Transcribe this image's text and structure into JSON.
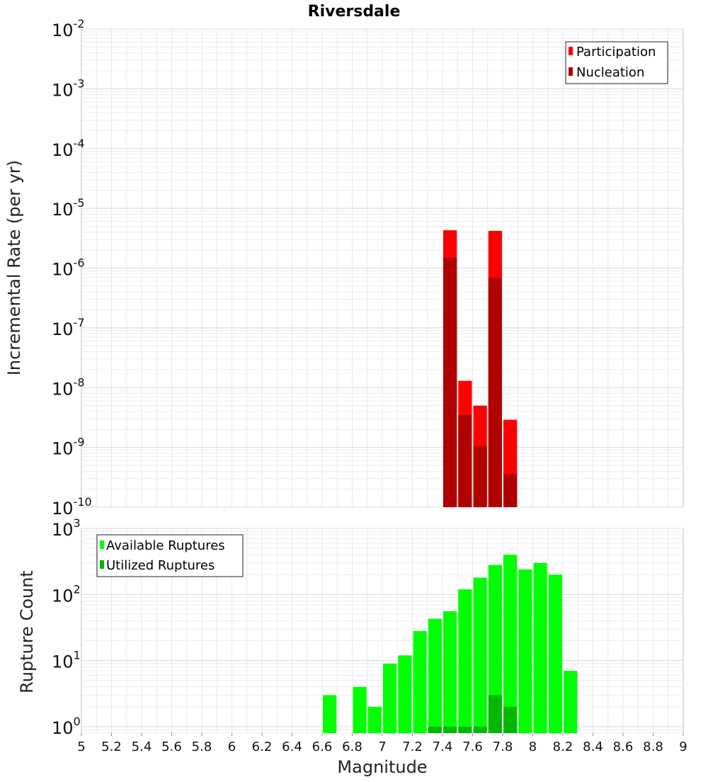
{
  "chart_data": [
    {
      "type": "bar",
      "title": "Riversdale",
      "xlabel": "",
      "ylabel": "Incremental Rate (per yr)",
      "yscale": "log",
      "ylim": [
        1e-10,
        0.01
      ],
      "xlim": [
        5,
        9
      ],
      "x_ticks": [],
      "y_ticks": [
        {
          "base": "10",
          "exp": "-2",
          "value": 0.01
        },
        {
          "base": "10",
          "exp": "-3",
          "value": 0.001
        },
        {
          "base": "10",
          "exp": "-4",
          "value": 0.0001
        },
        {
          "base": "10",
          "exp": "-5",
          "value": 1e-05
        },
        {
          "base": "10",
          "exp": "-6",
          "value": 1e-06
        },
        {
          "base": "10",
          "exp": "-7",
          "value": 1e-07
        },
        {
          "base": "10",
          "exp": "-8",
          "value": 1e-08
        },
        {
          "base": "10",
          "exp": "-9",
          "value": 1e-09
        },
        {
          "base": "10",
          "exp": "-10",
          "value": 1e-10
        }
      ],
      "grid": true,
      "legend_position": "top-right",
      "bar_width": 0.1,
      "series": [
        {
          "name": "Participation",
          "color": "#ff0000",
          "x": [
            7.45,
            7.55,
            7.65,
            7.75,
            7.85
          ],
          "values": [
            4.3e-06,
            1.3e-08,
            5e-09,
            4.2e-06,
            2.9e-09
          ]
        },
        {
          "name": "Nucleation",
          "color": "#b00000",
          "x": [
            7.45,
            7.55,
            7.65,
            7.75,
            7.85
          ],
          "values": [
            1.5e-06,
            3.5e-09,
            1.05e-09,
            6.8e-07,
            3.6e-10
          ]
        }
      ]
    },
    {
      "type": "bar",
      "title": "",
      "xlabel": "Magnitude",
      "ylabel": "Rupture Count",
      "yscale": "log",
      "ylim": [
        0.8,
        1000
      ],
      "xlim": [
        5,
        9
      ],
      "x_ticks": [
        "5",
        "5.2",
        "5.4",
        "5.6",
        "5.8",
        "6",
        "6.2",
        "6.4",
        "6.6",
        "6.8",
        "7",
        "7.2",
        "7.4",
        "7.6",
        "7.8",
        "8",
        "8.2",
        "8.4",
        "8.6",
        "8.8",
        "9"
      ],
      "y_ticks": [
        {
          "base": "10",
          "exp": "3",
          "value": 1000
        },
        {
          "base": "10",
          "exp": "2",
          "value": 100
        },
        {
          "base": "10",
          "exp": "1",
          "value": 10
        },
        {
          "base": "10",
          "exp": "0",
          "value": 1
        }
      ],
      "grid": true,
      "legend_position": "top-left",
      "bar_width": 0.1,
      "series": [
        {
          "name": "Available Ruptures",
          "color": "#00ff00",
          "x": [
            6.65,
            6.85,
            6.95,
            7.05,
            7.15,
            7.25,
            7.35,
            7.45,
            7.55,
            7.65,
            7.75,
            7.85,
            7.95,
            8.05,
            8.15,
            8.25
          ],
          "values": [
            3,
            4,
            2,
            9,
            12,
            28,
            43,
            56,
            120,
            180,
            280,
            400,
            240,
            300,
            200,
            7
          ]
        },
        {
          "name": "Utilized Ruptures",
          "color": "#00b800",
          "x": [
            7.35,
            7.45,
            7.55,
            7.65,
            7.75,
            7.85
          ],
          "values": [
            1,
            1,
            1,
            1,
            3,
            2
          ]
        }
      ]
    }
  ]
}
